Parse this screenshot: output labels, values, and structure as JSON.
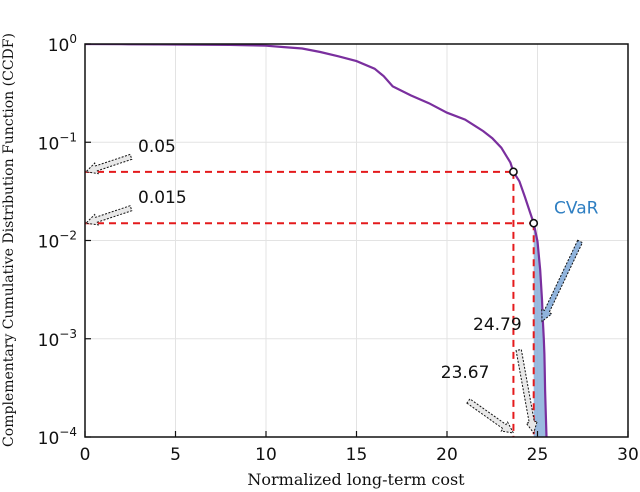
{
  "chart_data": {
    "type": "line",
    "xlabel": "Normalized long-term cost",
    "ylabel": "Complementary Cumulative Distribution Function (CCDF)",
    "xlim": [
      0,
      30
    ],
    "ylim": [
      0.0001,
      1
    ],
    "yscale": "log",
    "grid": true,
    "x_ticks": [
      "0",
      "5",
      "10",
      "15",
      "20",
      "25",
      "30"
    ],
    "y_ticks": [
      {
        "base": "10",
        "exp": "0",
        "value": 1
      },
      {
        "base": "10",
        "exp": "−1",
        "value": 0.1
      },
      {
        "base": "10",
        "exp": "−2",
        "value": 0.01
      },
      {
        "base": "10",
        "exp": "−3",
        "value": 0.001
      },
      {
        "base": "10",
        "exp": "−4",
        "value": 0.0001
      }
    ],
    "series": [
      {
        "color": "#7a2f9e",
        "points": [
          [
            0,
            1.0
          ],
          [
            2,
            0.995
          ],
          [
            4,
            0.99
          ],
          [
            6,
            0.985
          ],
          [
            8,
            0.98
          ],
          [
            9,
            0.97
          ],
          [
            10,
            0.96
          ],
          [
            11,
            0.93
          ],
          [
            12,
            0.9
          ],
          [
            13,
            0.83
          ],
          [
            14,
            0.75
          ],
          [
            15,
            0.67
          ],
          [
            16,
            0.56
          ],
          [
            16.5,
            0.47
          ],
          [
            17,
            0.37
          ],
          [
            18,
            0.3
          ],
          [
            19,
            0.25
          ],
          [
            20,
            0.2
          ],
          [
            21,
            0.17
          ],
          [
            22,
            0.13
          ],
          [
            22.5,
            0.11
          ],
          [
            23,
            0.088
          ],
          [
            23.5,
            0.062
          ],
          [
            23.67,
            0.05
          ],
          [
            24,
            0.04
          ],
          [
            24.3,
            0.028
          ],
          [
            24.6,
            0.019
          ],
          [
            24.79,
            0.015
          ],
          [
            25,
            0.0098
          ],
          [
            25.15,
            0.005
          ],
          [
            25.25,
            0.0025
          ],
          [
            25.3,
            0.0015
          ],
          [
            25.35,
            0.001
          ],
          [
            25.38,
            0.0007
          ],
          [
            25.4,
            0.0005
          ],
          [
            25.42,
            0.0003
          ],
          [
            25.45,
            0.0002
          ],
          [
            25.5,
            0.0001
          ]
        ]
      }
    ],
    "markers": [
      {
        "x": 23.67,
        "y": 0.05
      },
      {
        "x": 24.79,
        "y": 0.015
      }
    ],
    "annotations": [
      {
        "text": "0.05",
        "target_x": 0,
        "target_y": 0.05
      },
      {
        "text": "0.015",
        "target_x": 0,
        "target_y": 0.015
      },
      {
        "text": "24.79",
        "target_x": 24.79,
        "target_y": 0.0001
      },
      {
        "text": "23.67",
        "target_x": 23.67,
        "target_y": 0.0001
      },
      {
        "text": "CVaR",
        "target_x": 25.25,
        "target_y": 0.0015
      }
    ],
    "shaded_region": {
      "label": "CVaR",
      "from_x": 24.79,
      "color": "#8fb3dc"
    },
    "guide_color": "#e41a1c"
  }
}
